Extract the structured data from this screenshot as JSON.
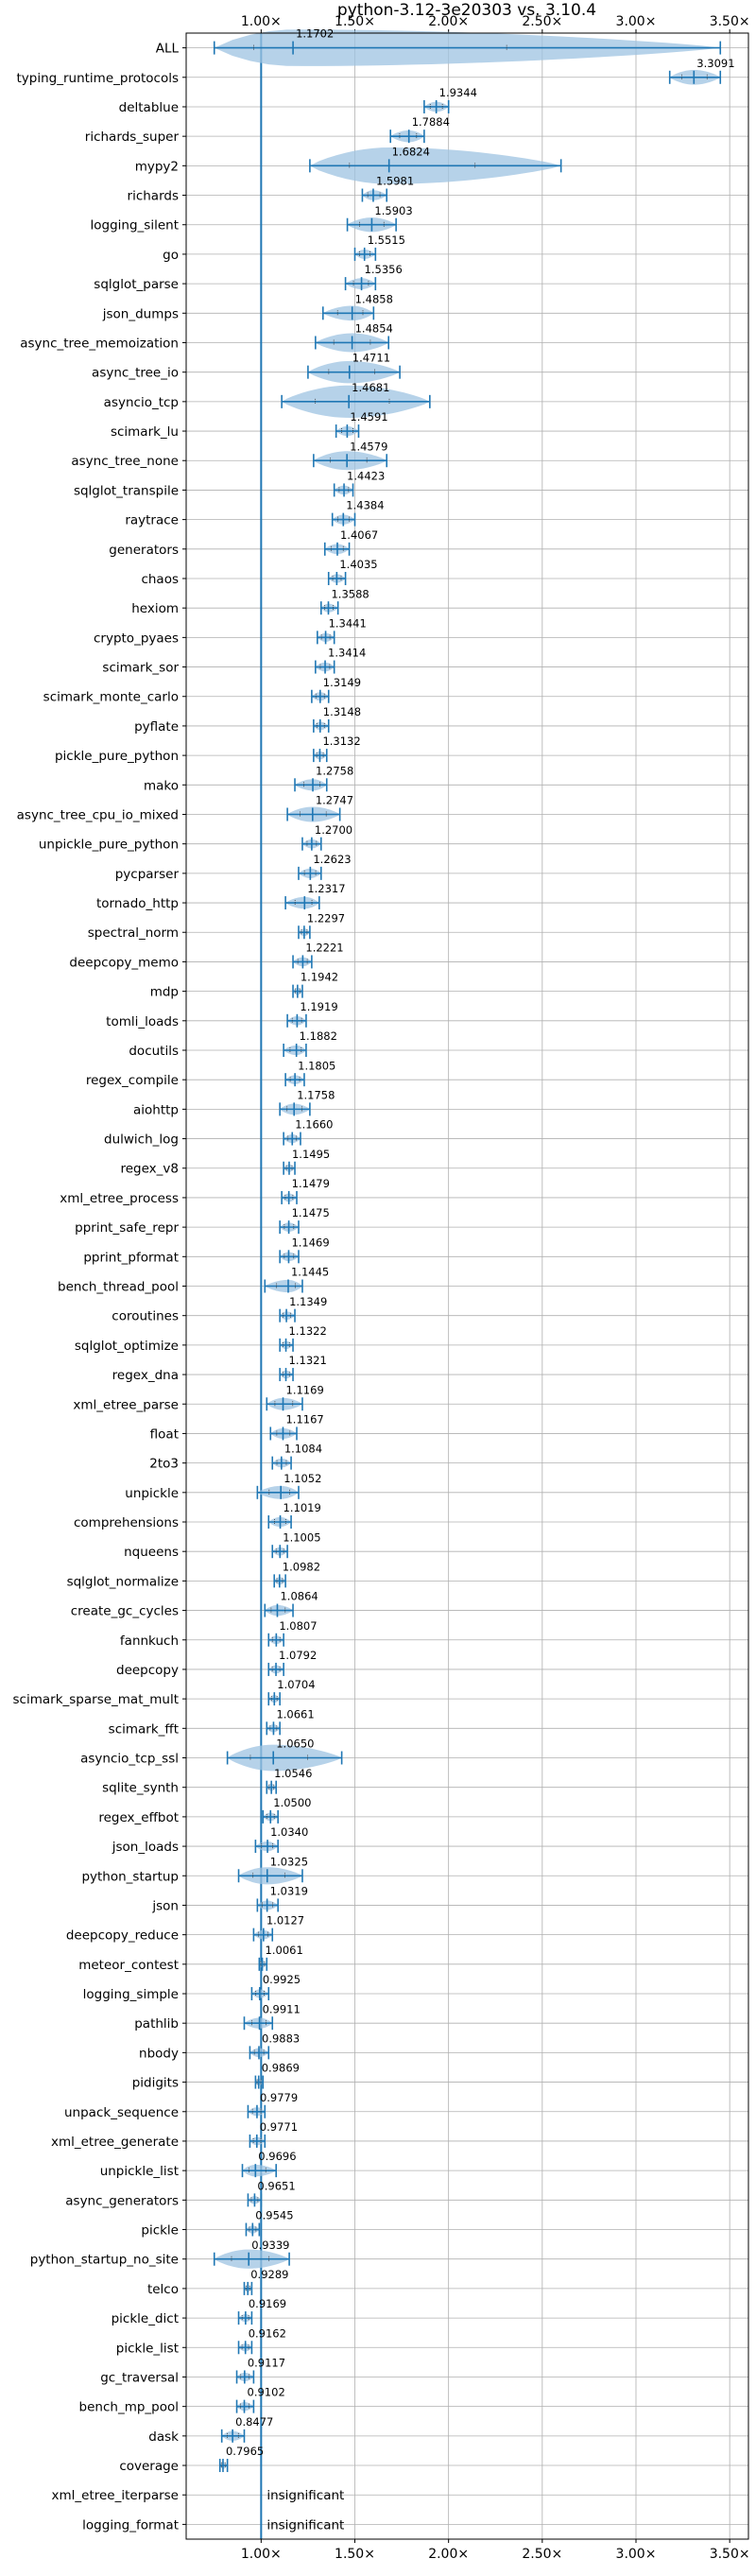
{
  "chart_data": {
    "type": "violin",
    "title": "python-3.12-3e20303 vs. 3.10.4",
    "xlabel": "",
    "ylabel": "",
    "xlim": [
      0.6,
      3.6
    ],
    "x_ticks": [
      1.0,
      1.5,
      2.0,
      2.5,
      3.0,
      3.5
    ],
    "x_tick_labels": [
      "1.00×",
      "1.50×",
      "2.00×",
      "2.50×",
      "3.00×",
      "3.50×"
    ],
    "reference_line": 1.0,
    "grid": true,
    "colors": {
      "violin": "#9ec3e2",
      "line": "#1f77b4"
    },
    "benchmarks": [
      {
        "name": "ALL",
        "label": "1.1702",
        "center": 1.1702,
        "min": 0.75,
        "max": 3.45
      },
      {
        "name": "typing_runtime_protocols",
        "label": "3.3091",
        "center": 3.3091,
        "min": 3.18,
        "max": 3.45
      },
      {
        "name": "deltablue",
        "label": "1.9344",
        "center": 1.9344,
        "min": 1.87,
        "max": 2.0
      },
      {
        "name": "richards_super",
        "label": "1.7884",
        "center": 1.7884,
        "min": 1.69,
        "max": 1.87
      },
      {
        "name": "mypy2",
        "label": "1.6824",
        "center": 1.6824,
        "min": 1.26,
        "max": 2.6
      },
      {
        "name": "richards",
        "label": "1.5981",
        "center": 1.5981,
        "min": 1.54,
        "max": 1.67
      },
      {
        "name": "logging_silent",
        "label": "1.5903",
        "center": 1.5903,
        "min": 1.46,
        "max": 1.72
      },
      {
        "name": "go",
        "label": "1.5515",
        "center": 1.5515,
        "min": 1.5,
        "max": 1.61
      },
      {
        "name": "sqlglot_parse",
        "label": "1.5356",
        "center": 1.5356,
        "min": 1.45,
        "max": 1.61
      },
      {
        "name": "json_dumps",
        "label": "1.4858",
        "center": 1.4858,
        "min": 1.33,
        "max": 1.6
      },
      {
        "name": "async_tree_memoization",
        "label": "1.4854",
        "center": 1.4854,
        "min": 1.29,
        "max": 1.68
      },
      {
        "name": "async_tree_io",
        "label": "1.4711",
        "center": 1.4711,
        "min": 1.25,
        "max": 1.74
      },
      {
        "name": "asyncio_tcp",
        "label": "1.4681",
        "center": 1.4681,
        "min": 1.11,
        "max": 1.9
      },
      {
        "name": "scimark_lu",
        "label": "1.4591",
        "center": 1.4591,
        "min": 1.4,
        "max": 1.52
      },
      {
        "name": "async_tree_none",
        "label": "1.4579",
        "center": 1.4579,
        "min": 1.28,
        "max": 1.67
      },
      {
        "name": "sqlglot_transpile",
        "label": "1.4423",
        "center": 1.4423,
        "min": 1.39,
        "max": 1.49
      },
      {
        "name": "raytrace",
        "label": "1.4384",
        "center": 1.4384,
        "min": 1.38,
        "max": 1.5
      },
      {
        "name": "generators",
        "label": "1.4067",
        "center": 1.4067,
        "min": 1.34,
        "max": 1.47
      },
      {
        "name": "chaos",
        "label": "1.4035",
        "center": 1.4035,
        "min": 1.36,
        "max": 1.45
      },
      {
        "name": "hexiom",
        "label": "1.3588",
        "center": 1.3588,
        "min": 1.32,
        "max": 1.41
      },
      {
        "name": "crypto_pyaes",
        "label": "1.3441",
        "center": 1.3441,
        "min": 1.3,
        "max": 1.39
      },
      {
        "name": "scimark_sor",
        "label": "1.3414",
        "center": 1.3414,
        "min": 1.29,
        "max": 1.39
      },
      {
        "name": "scimark_monte_carlo",
        "label": "1.3149",
        "center": 1.3149,
        "min": 1.27,
        "max": 1.36
      },
      {
        "name": "pyflate",
        "label": "1.3148",
        "center": 1.3148,
        "min": 1.28,
        "max": 1.36
      },
      {
        "name": "pickle_pure_python",
        "label": "1.3132",
        "center": 1.3132,
        "min": 1.28,
        "max": 1.35
      },
      {
        "name": "mako",
        "label": "1.2758",
        "center": 1.2758,
        "min": 1.18,
        "max": 1.35
      },
      {
        "name": "async_tree_cpu_io_mixed",
        "label": "1.2747",
        "center": 1.2747,
        "min": 1.14,
        "max": 1.42
      },
      {
        "name": "unpickle_pure_python",
        "label": "1.2700",
        "center": 1.27,
        "min": 1.22,
        "max": 1.32
      },
      {
        "name": "pycparser",
        "label": "1.2623",
        "center": 1.2623,
        "min": 1.2,
        "max": 1.32
      },
      {
        "name": "tornado_http",
        "label": "1.2317",
        "center": 1.2317,
        "min": 1.13,
        "max": 1.31
      },
      {
        "name": "spectral_norm",
        "label": "1.2297",
        "center": 1.2297,
        "min": 1.2,
        "max": 1.26
      },
      {
        "name": "deepcopy_memo",
        "label": "1.2221",
        "center": 1.2221,
        "min": 1.17,
        "max": 1.27
      },
      {
        "name": "mdp",
        "label": "1.1942",
        "center": 1.1942,
        "min": 1.17,
        "max": 1.22
      },
      {
        "name": "tomli_loads",
        "label": "1.1919",
        "center": 1.1919,
        "min": 1.14,
        "max": 1.24
      },
      {
        "name": "docutils",
        "label": "1.1882",
        "center": 1.1882,
        "min": 1.12,
        "max": 1.24
      },
      {
        "name": "regex_compile",
        "label": "1.1805",
        "center": 1.1805,
        "min": 1.13,
        "max": 1.23
      },
      {
        "name": "aiohttp",
        "label": "1.1758",
        "center": 1.1758,
        "min": 1.1,
        "max": 1.26
      },
      {
        "name": "dulwich_log",
        "label": "1.1660",
        "center": 1.166,
        "min": 1.12,
        "max": 1.21
      },
      {
        "name": "regex_v8",
        "label": "1.1495",
        "center": 1.1495,
        "min": 1.12,
        "max": 1.18
      },
      {
        "name": "xml_etree_process",
        "label": "1.1479",
        "center": 1.1479,
        "min": 1.11,
        "max": 1.19
      },
      {
        "name": "pprint_safe_repr",
        "label": "1.1475",
        "center": 1.1475,
        "min": 1.1,
        "max": 1.2
      },
      {
        "name": "pprint_pformat",
        "label": "1.1469",
        "center": 1.1469,
        "min": 1.1,
        "max": 1.2
      },
      {
        "name": "bench_thread_pool",
        "label": "1.1445",
        "center": 1.1445,
        "min": 1.02,
        "max": 1.22
      },
      {
        "name": "coroutines",
        "label": "1.1349",
        "center": 1.1349,
        "min": 1.1,
        "max": 1.18
      },
      {
        "name": "sqlglot_optimize",
        "label": "1.1322",
        "center": 1.1322,
        "min": 1.1,
        "max": 1.17
      },
      {
        "name": "regex_dna",
        "label": "1.1321",
        "center": 1.1321,
        "min": 1.1,
        "max": 1.17
      },
      {
        "name": "xml_etree_parse",
        "label": "1.1169",
        "center": 1.1169,
        "min": 1.03,
        "max": 1.22
      },
      {
        "name": "float",
        "label": "1.1167",
        "center": 1.1167,
        "min": 1.05,
        "max": 1.19
      },
      {
        "name": "2to3",
        "label": "1.1084",
        "center": 1.1084,
        "min": 1.06,
        "max": 1.16
      },
      {
        "name": "unpickle",
        "label": "1.1052",
        "center": 1.1052,
        "min": 0.98,
        "max": 1.2
      },
      {
        "name": "comprehensions",
        "label": "1.1019",
        "center": 1.1019,
        "min": 1.04,
        "max": 1.16
      },
      {
        "name": "nqueens",
        "label": "1.1005",
        "center": 1.1005,
        "min": 1.06,
        "max": 1.14
      },
      {
        "name": "sqlglot_normalize",
        "label": "1.0982",
        "center": 1.0982,
        "min": 1.07,
        "max": 1.13
      },
      {
        "name": "create_gc_cycles",
        "label": "1.0864",
        "center": 1.0864,
        "min": 1.02,
        "max": 1.17
      },
      {
        "name": "fannkuch",
        "label": "1.0807",
        "center": 1.0807,
        "min": 1.04,
        "max": 1.12
      },
      {
        "name": "deepcopy",
        "label": "1.0792",
        "center": 1.0792,
        "min": 1.04,
        "max": 1.12
      },
      {
        "name": "scimark_sparse_mat_mult",
        "label": "1.0704",
        "center": 1.0704,
        "min": 1.04,
        "max": 1.1
      },
      {
        "name": "scimark_fft",
        "label": "1.0661",
        "center": 1.0661,
        "min": 1.03,
        "max": 1.1
      },
      {
        "name": "asyncio_tcp_ssl",
        "label": "1.0650",
        "center": 1.065,
        "min": 0.82,
        "max": 1.43
      },
      {
        "name": "sqlite_synth",
        "label": "1.0546",
        "center": 1.0546,
        "min": 1.03,
        "max": 1.08
      },
      {
        "name": "regex_effbot",
        "label": "1.0500",
        "center": 1.05,
        "min": 1.01,
        "max": 1.09
      },
      {
        "name": "json_loads",
        "label": "1.0340",
        "center": 1.034,
        "min": 0.97,
        "max": 1.09
      },
      {
        "name": "python_startup",
        "label": "1.0325",
        "center": 1.0325,
        "min": 0.88,
        "max": 1.22
      },
      {
        "name": "json",
        "label": "1.0319",
        "center": 1.0319,
        "min": 0.98,
        "max": 1.09
      },
      {
        "name": "deepcopy_reduce",
        "label": "1.0127",
        "center": 1.0127,
        "min": 0.96,
        "max": 1.06
      },
      {
        "name": "meteor_contest",
        "label": "1.0061",
        "center": 1.0061,
        "min": 0.99,
        "max": 1.03
      },
      {
        "name": "logging_simple",
        "label": "0.9925",
        "center": 0.9925,
        "min": 0.95,
        "max": 1.04
      },
      {
        "name": "pathlib",
        "label": "0.9911",
        "center": 0.9911,
        "min": 0.91,
        "max": 1.06
      },
      {
        "name": "nbody",
        "label": "0.9883",
        "center": 0.9883,
        "min": 0.94,
        "max": 1.04
      },
      {
        "name": "pidigits",
        "label": "0.9869",
        "center": 0.9869,
        "min": 0.97,
        "max": 1.01
      },
      {
        "name": "unpack_sequence",
        "label": "0.9779",
        "center": 0.9779,
        "min": 0.93,
        "max": 1.02
      },
      {
        "name": "xml_etree_generate",
        "label": "0.9771",
        "center": 0.9771,
        "min": 0.94,
        "max": 1.02
      },
      {
        "name": "unpickle_list",
        "label": "0.9696",
        "center": 0.9696,
        "min": 0.9,
        "max": 1.08
      },
      {
        "name": "async_generators",
        "label": "0.9651",
        "center": 0.9651,
        "min": 0.93,
        "max": 1.0
      },
      {
        "name": "pickle",
        "label": "0.9545",
        "center": 0.9545,
        "min": 0.92,
        "max": 0.99
      },
      {
        "name": "python_startup_no_site",
        "label": "0.9339",
        "center": 0.9339,
        "min": 0.75,
        "max": 1.15
      },
      {
        "name": "telco",
        "label": "0.9289",
        "center": 0.9289,
        "min": 0.91,
        "max": 0.95
      },
      {
        "name": "pickle_dict",
        "label": "0.9169",
        "center": 0.9169,
        "min": 0.88,
        "max": 0.95
      },
      {
        "name": "pickle_list",
        "label": "0.9162",
        "center": 0.9162,
        "min": 0.88,
        "max": 0.95
      },
      {
        "name": "gc_traversal",
        "label": "0.9117",
        "center": 0.9117,
        "min": 0.87,
        "max": 0.96
      },
      {
        "name": "bench_mp_pool",
        "label": "0.9102",
        "center": 0.9102,
        "min": 0.87,
        "max": 0.96
      },
      {
        "name": "dask",
        "label": "0.8477",
        "center": 0.8477,
        "min": 0.79,
        "max": 0.91
      },
      {
        "name": "coverage",
        "label": "0.7965",
        "center": 0.7965,
        "min": 0.78,
        "max": 0.82
      },
      {
        "name": "xml_etree_iterparse",
        "label": "insignificant",
        "center": null,
        "min": null,
        "max": null
      },
      {
        "name": "logging_format",
        "label": "insignificant",
        "center": null,
        "min": null,
        "max": null
      }
    ]
  }
}
